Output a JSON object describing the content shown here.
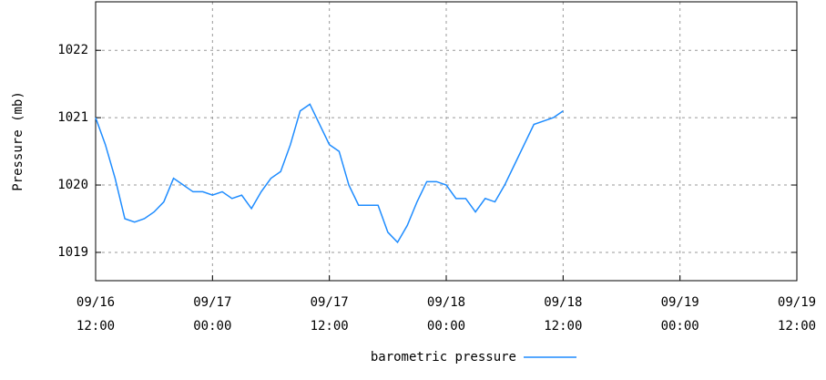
{
  "chart_data": {
    "type": "line",
    "ylabel": "Pressure (mb)",
    "x": [
      0,
      1,
      2,
      3,
      4,
      5,
      6,
      7,
      8,
      9,
      10,
      11,
      12,
      13,
      14,
      15,
      16,
      17,
      18,
      19,
      20,
      21,
      22,
      23,
      24,
      25,
      26,
      27,
      28,
      29,
      30,
      31,
      32,
      33,
      34,
      35,
      36,
      37,
      38,
      39,
      40,
      41,
      42,
      43,
      44,
      45,
      46,
      47,
      48
    ],
    "series": [
      {
        "name": "barometric pressure",
        "color": "#1e8cff",
        "values": [
          1021.0,
          1020.6,
          1020.1,
          1019.5,
          1019.45,
          1019.5,
          1019.6,
          1019.75,
          1020.1,
          1020.0,
          1019.9,
          1019.9,
          1019.85,
          1019.9,
          1019.8,
          1019.85,
          1019.65,
          1019.9,
          1020.1,
          1020.2,
          1020.6,
          1021.1,
          1021.2,
          1020.9,
          1020.6,
          1020.5,
          1020.0,
          1019.7,
          1019.7,
          1019.7,
          1019.3,
          1019.15,
          1019.4,
          1019.75,
          1020.05,
          1020.05,
          1020.0,
          1019.8,
          1019.8,
          1019.6,
          1019.8,
          1019.75,
          1020.0,
          1020.3,
          1020.6,
          1020.9,
          1020.95,
          1021.0,
          1021.1
        ]
      }
    ],
    "xlim": [
      0,
      72
    ],
    "xticks": [
      {
        "value": 0,
        "label": "09/16 12:00"
      },
      {
        "value": 12,
        "label": "09/17 00:00"
      },
      {
        "value": 24,
        "label": "09/17 12:00"
      },
      {
        "value": 36,
        "label": "09/18 00:00"
      },
      {
        "value": 48,
        "label": "09/18 12:00"
      },
      {
        "value": 60,
        "label": "09/19 00:00"
      },
      {
        "value": 72,
        "label": "09/19 12:00"
      }
    ],
    "ylim": [
      1018.58,
      1022.72
    ],
    "yticks": [
      1019,
      1020,
      1021,
      1022
    ],
    "grid": true,
    "legend": "bottom"
  }
}
